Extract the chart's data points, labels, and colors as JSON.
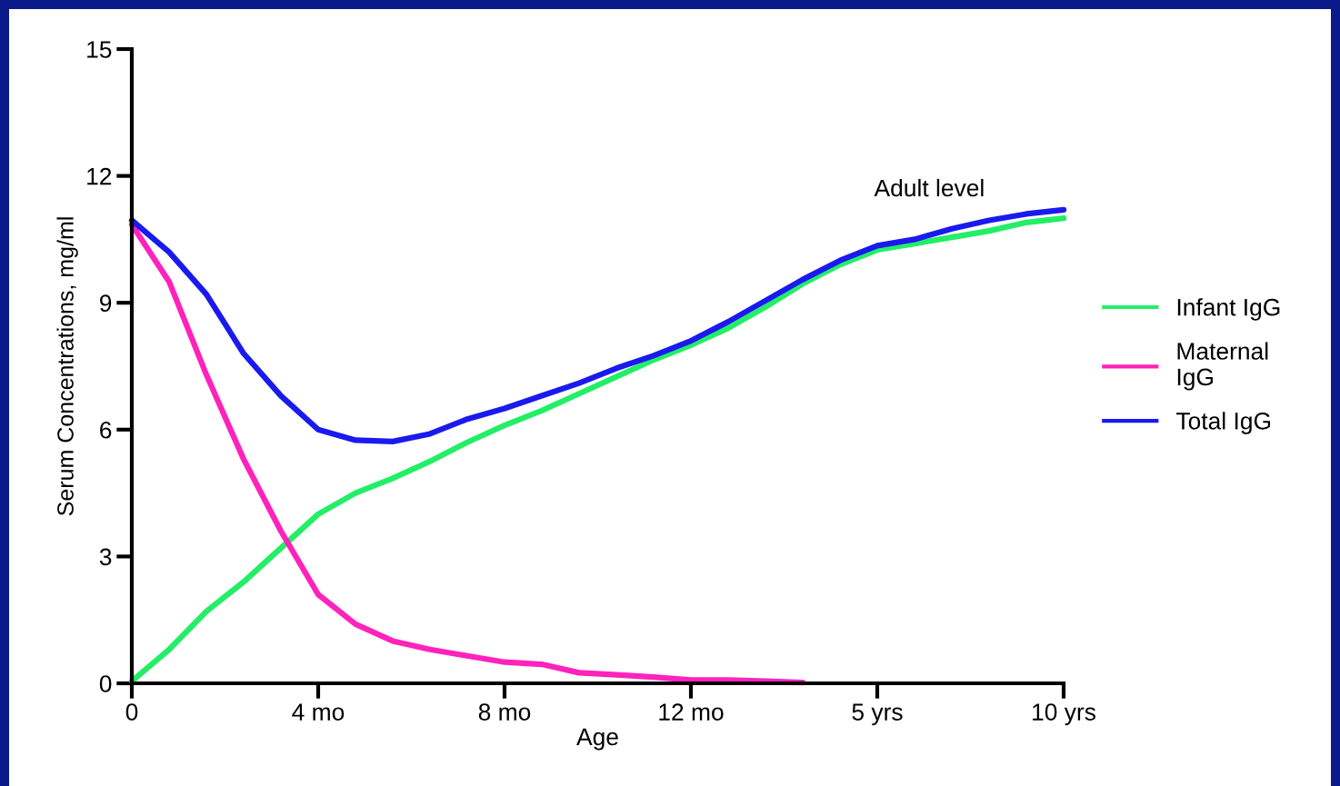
{
  "chart_data": {
    "type": "line",
    "xlabel": "Age",
    "ylabel": "Serum Concentrations, mg/ml",
    "categories": [
      "0",
      null,
      null,
      null,
      null,
      "4 mo",
      null,
      null,
      null,
      null,
      "8 mo",
      null,
      null,
      null,
      null,
      "12 mo",
      null,
      null,
      null,
      null,
      "5 yrs",
      null,
      null,
      null,
      null,
      "10 yrs"
    ],
    "ylim": [
      0,
      15
    ],
    "yticks": [
      0,
      3,
      6,
      9,
      12,
      15
    ],
    "grid": false,
    "legend": "right",
    "line_style": "solid",
    "annotations": [
      "Adult level"
    ],
    "series": [
      {
        "name": "Infant IgG",
        "color": "#22ee66",
        "values": [
          0.05,
          0.8,
          1.7,
          2.4,
          3.2,
          4.0,
          4.5,
          4.85,
          5.25,
          5.7,
          6.1,
          6.45,
          6.85,
          7.25,
          7.65,
          8.0,
          8.4,
          8.9,
          9.45,
          9.9,
          10.25,
          10.4,
          10.55,
          10.7,
          10.9,
          11.0
        ]
      },
      {
        "name": "Maternal\nIgG",
        "color": "#ff22bb",
        "values": [
          10.85,
          9.5,
          7.3,
          5.3,
          3.6,
          2.1,
          1.4,
          1.0,
          0.8,
          0.65,
          0.5,
          0.45,
          0.25,
          0.2,
          0.15,
          0.08,
          0.08,
          0.05,
          0.02,
          null,
          null,
          null,
          null,
          null,
          null,
          null
        ]
      },
      {
        "name": "Total IgG",
        "color": "#1a1aee",
        "values": [
          10.95,
          10.2,
          9.2,
          7.8,
          6.8,
          6.0,
          5.75,
          5.72,
          5.9,
          6.25,
          6.5,
          6.8,
          7.1,
          7.45,
          7.75,
          8.1,
          8.55,
          9.05,
          9.55,
          10.0,
          10.35,
          10.5,
          10.75,
          10.95,
          11.1,
          11.2
        ]
      }
    ]
  }
}
